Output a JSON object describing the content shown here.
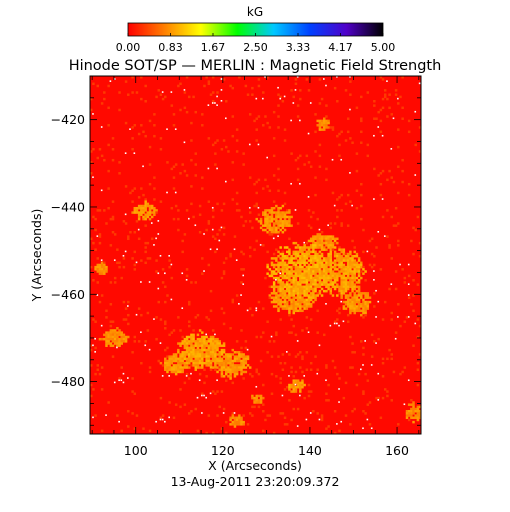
{
  "chart_data": {
    "type": "heatmap",
    "title": "Hinode SOT/SP — MERLIN : Magnetic Field Strength",
    "xlabel": "X (Arcseconds)",
    "ylabel": "Y (Arcseconds)",
    "timestamp": "13-Aug-2011 23:20:09.372",
    "xlim": [
      89.5,
      165.5
    ],
    "ylim": [
      -492,
      -410
    ],
    "x_ticks": [
      100,
      120,
      140,
      160
    ],
    "y_ticks": [
      -420,
      -440,
      -460,
      -480
    ],
    "colorbar": {
      "unit": "kG",
      "range": [
        0.0,
        5.0
      ],
      "tick_labels": [
        "0.00",
        "0.83",
        "1.67",
        "2.50",
        "3.33",
        "4.17",
        "5.00"
      ],
      "colors": [
        "#ff0000",
        "#ff7f00",
        "#ffff00",
        "#00ff00",
        "#00c8ff",
        "#0040ff",
        "#5000c8",
        "#000000"
      ]
    },
    "background_field_kG": 0.05,
    "patches": [
      {
        "x": 138.0,
        "y": -455.0,
        "rx": 7.0,
        "ry": 6.0,
        "value_kG": 0.95
      },
      {
        "x": 147.0,
        "y": -455.0,
        "rx": 5.0,
        "ry": 5.0,
        "value_kG": 0.9
      },
      {
        "x": 132.0,
        "y": -443.0,
        "rx": 4.0,
        "ry": 3.0,
        "value_kG": 0.85
      },
      {
        "x": 136.0,
        "y": -461.0,
        "rx": 5.0,
        "ry": 3.0,
        "value_kG": 0.85
      },
      {
        "x": 151.0,
        "y": -462.0,
        "rx": 3.0,
        "ry": 3.0,
        "value_kG": 0.85
      },
      {
        "x": 115.0,
        "y": -473.0,
        "rx": 5.0,
        "ry": 4.0,
        "value_kG": 0.9
      },
      {
        "x": 122.0,
        "y": -476.0,
        "rx": 4.0,
        "ry": 3.0,
        "value_kG": 0.85
      },
      {
        "x": 109.0,
        "y": -476.0,
        "rx": 3.0,
        "ry": 2.0,
        "value_kG": 0.85
      },
      {
        "x": 102.0,
        "y": -441.0,
        "rx": 2.5,
        "ry": 2.0,
        "value_kG": 0.85
      },
      {
        "x": 95.0,
        "y": -470.0,
        "rx": 3.0,
        "ry": 2.0,
        "value_kG": 0.8
      },
      {
        "x": 92.0,
        "y": -454.0,
        "rx": 1.5,
        "ry": 1.5,
        "value_kG": 0.8
      },
      {
        "x": 137.0,
        "y": -481.0,
        "rx": 2.0,
        "ry": 1.5,
        "value_kG": 0.85
      },
      {
        "x": 143.0,
        "y": -421.0,
        "rx": 1.5,
        "ry": 1.5,
        "value_kG": 0.8
      },
      {
        "x": 164.0,
        "y": -487.0,
        "rx": 2.0,
        "ry": 2.0,
        "value_kG": 0.8
      },
      {
        "x": 128.0,
        "y": -484.0,
        "rx": 1.5,
        "ry": 1.0,
        "value_kG": 0.8
      },
      {
        "x": 143.0,
        "y": -448.0,
        "rx": 3.0,
        "ry": 2.0,
        "value_kG": 0.85
      },
      {
        "x": 123.0,
        "y": -489.0,
        "rx": 2.0,
        "ry": 1.2,
        "value_kG": 0.8
      }
    ]
  }
}
